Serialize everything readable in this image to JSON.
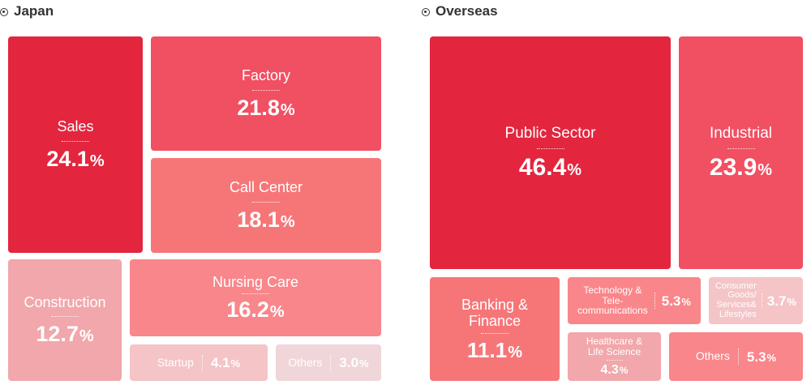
{
  "chart_data": [
    {
      "type": "treemap",
      "title": "Japan",
      "categories": [
        "Sales",
        "Factory",
        "Call Center",
        "Construction",
        "Nursing Care",
        "Startup",
        "Others"
      ],
      "values": [
        24.1,
        21.8,
        18.1,
        12.7,
        16.2,
        4.1,
        3.0
      ],
      "unit": "%",
      "colors": [
        "#e3253e",
        "#f14f62",
        "#f67678",
        "#f1a7ab",
        "#f9868a",
        "#f4c4c7",
        "#f0d6d8"
      ],
      "value_labels": [
        "24.1",
        "21.8",
        "18.1",
        "12.7",
        "16.2",
        "4.1",
        "3.0"
      ]
    },
    {
      "type": "treemap",
      "title": "Overseas",
      "categories": [
        "Public Sector",
        "Industrial",
        "Banking & Finance",
        "Technology & Tele-communications",
        "Consumer Goods/ Services& Lifestyles",
        "Healthcare & Life Science",
        "Others"
      ],
      "values": [
        46.4,
        23.9,
        11.1,
        5.3,
        3.7,
        4.3,
        5.3
      ],
      "unit": "%",
      "colors": [
        "#e3253e",
        "#f14f62",
        "#f67678",
        "#f9868a",
        "#f4c4c7",
        "#f1a7ab",
        "#f9868a"
      ],
      "value_labels": [
        "46.4",
        "23.9",
        "11.1",
        "5.3",
        "3.7",
        "4.3",
        "5.3"
      ]
    }
  ],
  "label_lines": {
    "banking": [
      "Banking &",
      "Finance"
    ],
    "tech": [
      "Technology &",
      "Tele-",
      "communications"
    ],
    "consumer": [
      "Consumer",
      "Goods/",
      "Services&",
      "Lifestyles"
    ],
    "health": [
      "Healthcare &",
      "Life Science"
    ]
  },
  "pct_symbol": "%"
}
